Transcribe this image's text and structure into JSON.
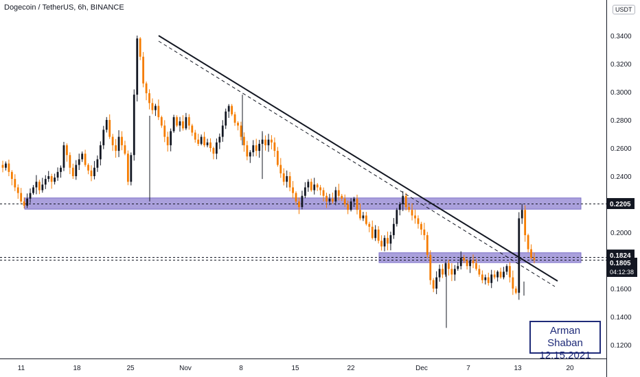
{
  "header": {
    "symbol_title": "Dogecoin / TetherUS, 6h, BINANCE",
    "currency": "USDT"
  },
  "chart_data": {
    "type": "candlestick",
    "ylim": [
      0.1135,
      0.3645
    ],
    "y_ticks": [
      "0.3400",
      "0.3200",
      "0.3000",
      "0.2800",
      "0.2600",
      "0.2400",
      "0.2000",
      "0.1600",
      "0.1400",
      "0.1200"
    ],
    "x_ticks": [
      "11",
      "18",
      "25",
      "Nov",
      "8",
      "15",
      "22",
      "Dec",
      "7",
      "13",
      "20"
    ],
    "price_labels": {
      "resistance": "0.2205",
      "last": "0.1824",
      "close": "0.1805",
      "countdown": "04:12:38"
    },
    "horizontal_levels": [
      0.2205,
      0.1824,
      0.1805
    ],
    "zones": [
      {
        "low": 0.2165,
        "high": 0.2245
      },
      {
        "low": 0.1785,
        "high": 0.1855
      }
    ],
    "trendline": {
      "from": [
        0.34
      ],
      "to": [
        0.1645
      ]
    },
    "path": [
      0.246,
      0.249,
      0.243,
      0.238,
      0.232,
      0.228,
      0.222,
      0.219,
      0.224,
      0.228,
      0.232,
      0.236,
      0.23,
      0.234,
      0.238,
      0.24,
      0.236,
      0.239,
      0.243,
      0.246,
      0.262,
      0.255,
      0.246,
      0.24,
      0.248,
      0.252,
      0.256,
      0.248,
      0.244,
      0.24,
      0.246,
      0.252,
      0.262,
      0.273,
      0.28,
      0.268,
      0.262,
      0.258,
      0.268,
      0.262,
      0.256,
      0.236,
      0.255,
      0.298,
      0.338,
      0.325,
      0.306,
      0.299,
      0.292,
      0.287,
      0.29,
      0.282,
      0.276,
      0.268,
      0.262,
      0.272,
      0.282,
      0.276,
      0.279,
      0.274,
      0.282,
      0.276,
      0.271,
      0.266,
      0.263,
      0.268,
      0.262,
      0.264,
      0.26,
      0.256,
      0.264,
      0.268,
      0.276,
      0.286,
      0.29,
      0.284,
      0.278,
      0.276,
      0.268,
      0.262,
      0.254,
      0.257,
      0.262,
      0.258,
      0.263,
      0.266,
      0.262,
      0.266,
      0.264,
      0.258,
      0.248,
      0.242,
      0.236,
      0.24,
      0.232,
      0.228,
      0.222,
      0.218,
      0.226,
      0.232,
      0.236,
      0.23,
      0.234,
      0.232,
      0.23,
      0.226,
      0.222,
      0.224,
      0.222,
      0.23,
      0.226,
      0.224,
      0.22,
      0.216,
      0.222,
      0.224,
      0.216,
      0.21,
      0.212,
      0.206,
      0.204,
      0.196,
      0.202,
      0.194,
      0.19,
      0.196,
      0.192,
      0.198,
      0.206,
      0.216,
      0.22,
      0.226,
      0.218,
      0.216,
      0.212,
      0.21,
      0.206,
      0.202,
      0.198,
      0.184,
      0.166,
      0.16,
      0.168,
      0.174,
      0.17,
      0.178,
      0.174,
      0.17,
      0.174,
      0.176,
      0.182,
      0.18,
      0.176,
      0.18,
      0.178,
      0.174,
      0.17,
      0.166,
      0.168,
      0.164,
      0.17,
      0.168,
      0.172,
      0.168,
      0.172,
      0.176,
      0.168,
      0.16,
      0.157,
      0.21,
      0.216,
      0.198,
      0.188,
      0.182,
      0.1805
    ]
  },
  "signature": {
    "name": "Arman Shaban",
    "date": "12.15.2021"
  },
  "colors": {
    "bull": "#131722",
    "bear": "#f57c00",
    "zone": "#9b8fd6",
    "axis_text": "#131722",
    "label_bg": "#131722",
    "label_text": "#ffffff",
    "signature": "#1e2a78"
  }
}
